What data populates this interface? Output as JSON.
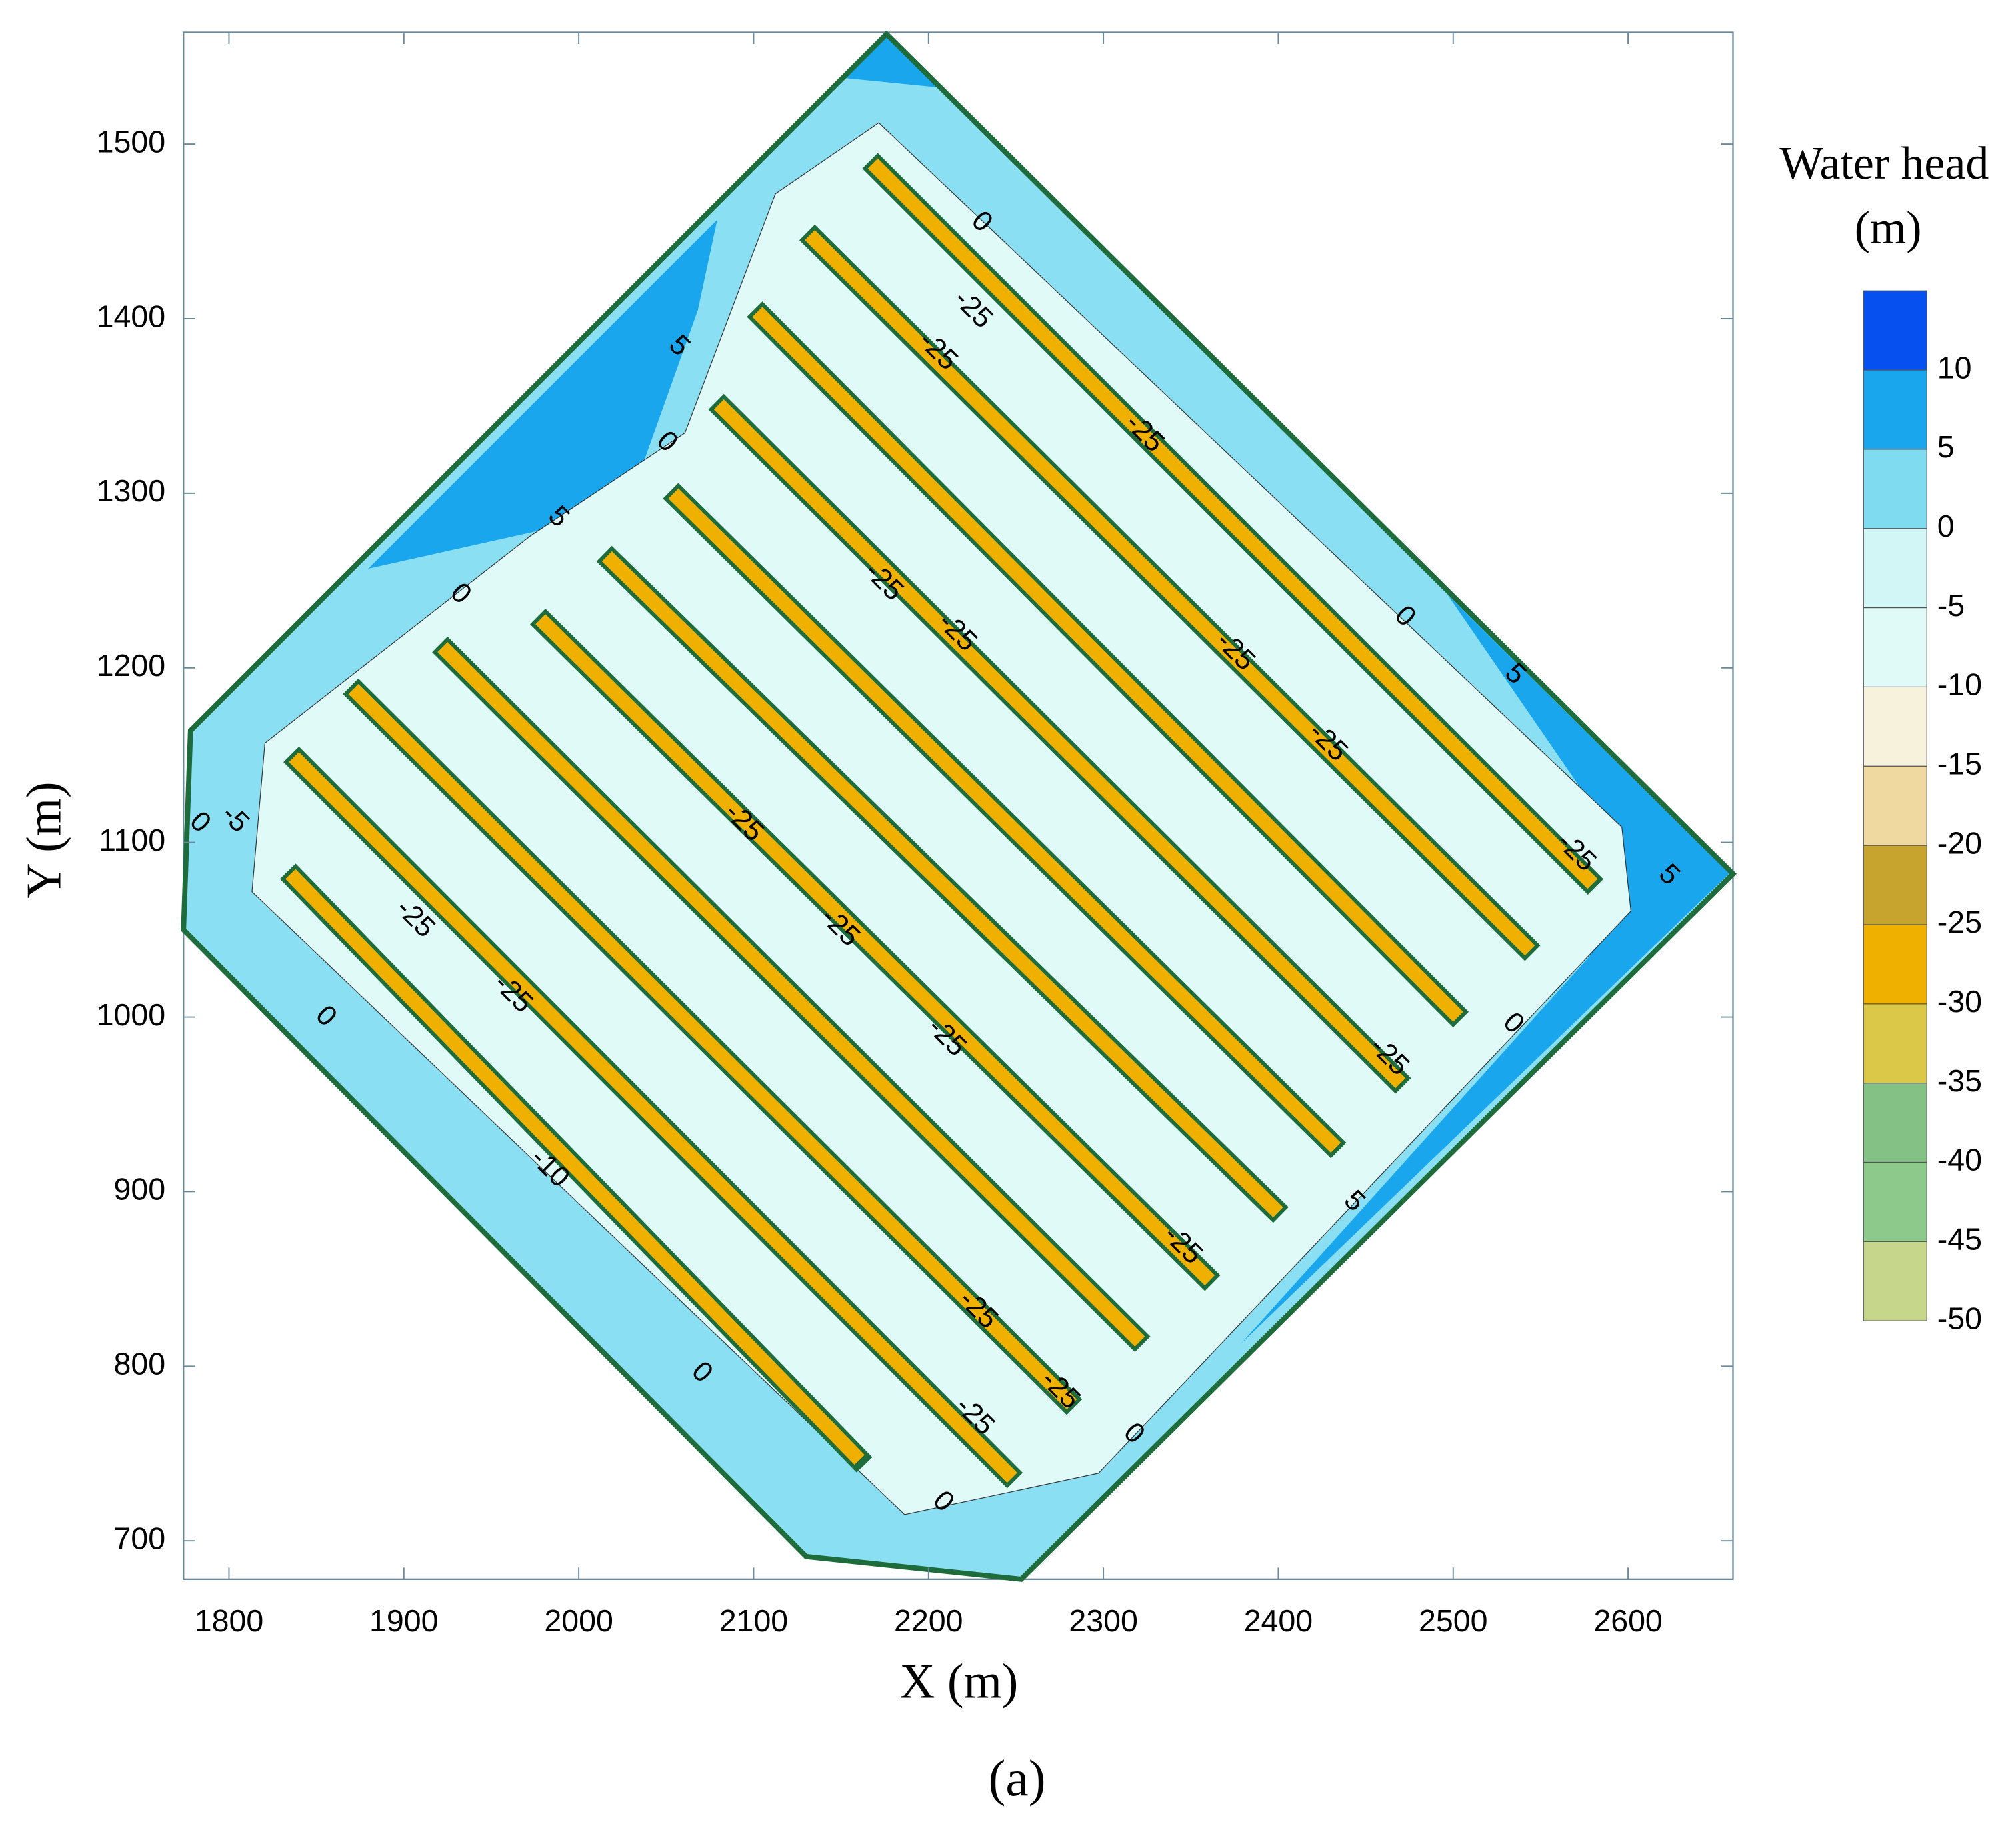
{
  "chart_data": {
    "type": "contour",
    "xlabel": "X (m)",
    "ylabel": "Y (m)",
    "caption": "(a)",
    "xlim": [
      1774,
      2660
    ],
    "ylim": [
      678,
      1564
    ],
    "xticks": [
      1800,
      1900,
      2000,
      2100,
      2200,
      2300,
      2400,
      2500,
      2600
    ],
    "yticks": [
      700,
      800,
      900,
      1000,
      1100,
      1200,
      1300,
      1400,
      1500
    ],
    "grid": false,
    "boundary": {
      "color": "#1e6b3c",
      "x": [
        2176,
        2660,
        2253,
        2130,
        1774,
        1778
      ],
      "y": [
        1563,
        1082,
        678,
        691,
        1050,
        1164
      ]
    },
    "trenches": {
      "color": "#f0b000",
      "edge": "#1e6b3c",
      "x1": [
        1838,
        1840,
        1874,
        1925,
        1981,
        2019,
        2057,
        2083,
        2105,
        2135,
        2171
      ],
      "y1": [
        1079,
        1146,
        1185,
        1209,
        1225,
        1261,
        1297,
        1348,
        1401,
        1445,
        1486
      ],
      "x2": [
        2159,
        2245,
        2279,
        2318,
        2358,
        2397,
        2430,
        2467,
        2500,
        2541,
        2577
      ],
      "y2": [
        748,
        739,
        781,
        817,
        852,
        891,
        928,
        965,
        1003,
        1041,
        1079
      ]
    },
    "contour_labels": [
      {
        "x": 2230,
        "y": 1455,
        "value": 0
      },
      {
        "x": 2225,
        "y": 1405,
        "value": -25
      },
      {
        "x": 2205,
        "y": 1381,
        "value": -25
      },
      {
        "x": 2323,
        "y": 1334,
        "value": -25
      },
      {
        "x": 2057,
        "y": 1384,
        "value": 5
      },
      {
        "x": 2050,
        "y": 1329,
        "value": 0
      },
      {
        "x": 1988,
        "y": 1286,
        "value": 5
      },
      {
        "x": 1932,
        "y": 1242,
        "value": 0
      },
      {
        "x": 2174,
        "y": 1249,
        "value": -25
      },
      {
        "x": 2216,
        "y": 1220,
        "value": -25
      },
      {
        "x": 2375,
        "y": 1209,
        "value": -25
      },
      {
        "x": 2472,
        "y": 1229,
        "value": 0
      },
      {
        "x": 2535,
        "y": 1196,
        "value": 5
      },
      {
        "x": 2428,
        "y": 1157,
        "value": -25
      },
      {
        "x": 1783,
        "y": 1111,
        "value": 0
      },
      {
        "x": 1803,
        "y": 1113,
        "value": -5
      },
      {
        "x": 2094,
        "y": 1111,
        "value": -25
      },
      {
        "x": 2570,
        "y": 1094,
        "value": -25
      },
      {
        "x": 2623,
        "y": 1081,
        "value": 5
      },
      {
        "x": 1906,
        "y": 1056,
        "value": -25
      },
      {
        "x": 2149,
        "y": 1051,
        "value": -25
      },
      {
        "x": 1962,
        "y": 1013,
        "value": -25
      },
      {
        "x": 2534,
        "y": 996,
        "value": 0
      },
      {
        "x": 2210,
        "y": 988,
        "value": -25
      },
      {
        "x": 1855,
        "y": 1000,
        "value": 0
      },
      {
        "x": 2463,
        "y": 977,
        "value": -25
      },
      {
        "x": 1983,
        "y": 913,
        "value": -10
      },
      {
        "x": 2443,
        "y": 894,
        "value": 5
      },
      {
        "x": 2345,
        "y": 869,
        "value": -25
      },
      {
        "x": 2228,
        "y": 832,
        "value": -25
      },
      {
        "x": 2275,
        "y": 786,
        "value": -25
      },
      {
        "x": 2070,
        "y": 796,
        "value": 0
      },
      {
        "x": 2226,
        "y": 771,
        "value": -25
      },
      {
        "x": 2317,
        "y": 761,
        "value": 0
      },
      {
        "x": 2208,
        "y": 722,
        "value": 0
      }
    ],
    "colorbar": {
      "title": [
        "Water head",
        "(m)"
      ],
      "levels": [
        -50,
        -45,
        -40,
        -35,
        -30,
        -25,
        -20,
        -15,
        -10,
        -5,
        0,
        5,
        10
      ],
      "colors": [
        "#c6d68a",
        "#8dc98a",
        "#84c184",
        "#dcc848",
        "#f0b000",
        "#c6a42e",
        "#efd9a0",
        "#f6f2dc",
        "#e0fbf7",
        "#d2f6f6",
        "#7fdcf0",
        "#1aa6ec",
        "#0650f0"
      ]
    }
  }
}
